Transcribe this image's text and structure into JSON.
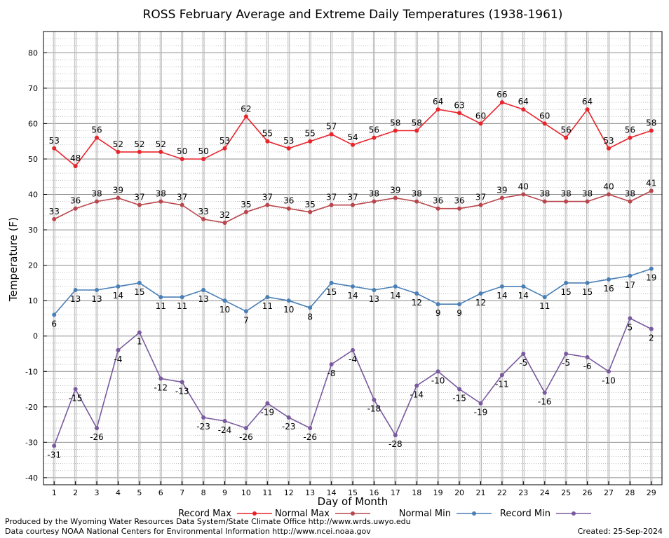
{
  "chart_data": {
    "type": "line",
    "title": "ROSS February Average and Extreme Daily Temperatures (1938-1961)",
    "xlabel": "Day of Month",
    "ylabel": "Temperature (F)",
    "x": [
      1,
      2,
      3,
      4,
      5,
      6,
      7,
      8,
      9,
      10,
      11,
      12,
      13,
      14,
      15,
      16,
      17,
      18,
      19,
      20,
      21,
      22,
      23,
      24,
      25,
      26,
      27,
      28,
      29
    ],
    "xlim": [
      0.5,
      29.5
    ],
    "ylim": [
      -42,
      86
    ],
    "yticks": [
      -40,
      -30,
      -20,
      -10,
      0,
      10,
      20,
      30,
      40,
      50,
      60,
      70,
      80
    ],
    "grid": true,
    "legend_position": "bottom",
    "series": [
      {
        "name": "Record Max",
        "color": "#e8242b",
        "label_pos": "above",
        "values": [
          53,
          48,
          56,
          52,
          52,
          52,
          50,
          50,
          53,
          62,
          55,
          53,
          55,
          57,
          54,
          56,
          58,
          58,
          64,
          63,
          60,
          66,
          64,
          60,
          56,
          64,
          53,
          56,
          58
        ]
      },
      {
        "name": "Normal Max",
        "color": "#b8464c",
        "label_pos": "above",
        "values": [
          33,
          36,
          38,
          39,
          37,
          38,
          37,
          33,
          32,
          35,
          37,
          36,
          35,
          37,
          37,
          38,
          39,
          38,
          36,
          36,
          37,
          39,
          40,
          38,
          38,
          38,
          40,
          38,
          41
        ]
      },
      {
        "name": "Normal Min",
        "color": "#4a7fb5",
        "label_pos": "below",
        "values": [
          6,
          13,
          13,
          14,
          15,
          11,
          11,
          13,
          10,
          7,
          11,
          10,
          8,
          15,
          14,
          13,
          14,
          12,
          9,
          9,
          12,
          14,
          14,
          11,
          15,
          15,
          16,
          17,
          19
        ]
      },
      {
        "name": "Record Min",
        "color": "#7a5a9e",
        "label_pos": "below",
        "values": [
          -31,
          -15,
          -26,
          -4,
          1,
          -12,
          -13,
          -23,
          -24,
          -26,
          -19,
          -23,
          -26,
          -8,
          -4,
          -18,
          -28,
          -14,
          -10,
          -15,
          -19,
          -11,
          -5,
          -16,
          -5,
          -6,
          -10,
          5,
          2
        ]
      }
    ]
  },
  "footer": {
    "produced_by": "Produced by the Wyoming Water Resources Data System/State Climate Office http://www.wrds.uwyo.edu",
    "courtesy": "Data courtesy NOAA National Centers for Environmental Information http://www.ncei.noaa.gov",
    "created": "Created:  25-Sep-2024"
  }
}
